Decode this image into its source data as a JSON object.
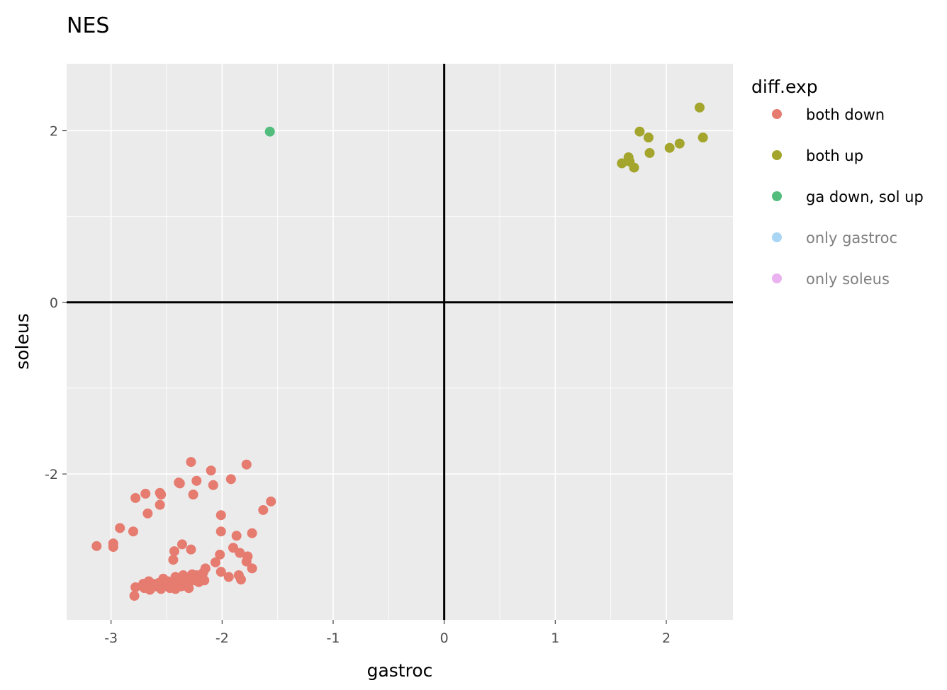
{
  "chart_data": {
    "type": "scatter",
    "title": "NES",
    "xlabel": "gastroc",
    "ylabel": "soleus",
    "xlim": [
      -3.4,
      2.6
    ],
    "ylim": [
      -3.7,
      2.78
    ],
    "xticks": [
      -3,
      -2,
      -1,
      0,
      1,
      2
    ],
    "yticks": [
      -2,
      0,
      2
    ],
    "grid": true,
    "reference_lines": {
      "x": 0,
      "y": 0
    },
    "legend": {
      "title": "diff.exp",
      "position": "right",
      "entries": [
        {
          "label": "both down",
          "color": "#e67b70",
          "text_color": "#000000"
        },
        {
          "label": "both up",
          "color": "#a3a52c",
          "text_color": "#000000"
        },
        {
          "label": "ga down, sol up",
          "color": "#52bd7d",
          "text_color": "#000000"
        },
        {
          "label": "only gastroc",
          "color": "#a9d6f5",
          "text_color": "#808080"
        },
        {
          "label": "only soleus",
          "color": "#eab3f0",
          "text_color": "#808080"
        }
      ]
    },
    "series": [
      {
        "name": "both down",
        "color": "#e67b70",
        "points": [
          [
            -3.13,
            -2.84
          ],
          [
            -2.98,
            -2.81
          ],
          [
            -2.98,
            -2.85
          ],
          [
            -2.92,
            -2.63
          ],
          [
            -2.8,
            -2.67
          ],
          [
            -2.78,
            -2.28
          ],
          [
            -2.69,
            -2.23
          ],
          [
            -2.67,
            -2.46
          ],
          [
            -2.56,
            -2.22
          ],
          [
            -2.55,
            -2.24
          ],
          [
            -2.56,
            -2.36
          ],
          [
            -2.39,
            -2.1
          ],
          [
            -2.38,
            -2.11
          ],
          [
            -2.28,
            -1.86
          ],
          [
            -2.26,
            -2.24
          ],
          [
            -2.23,
            -2.08
          ],
          [
            -2.1,
            -1.96
          ],
          [
            -2.08,
            -2.13
          ],
          [
            -1.92,
            -2.06
          ],
          [
            -1.78,
            -1.89
          ],
          [
            -2.01,
            -2.48
          ],
          [
            -2.01,
            -2.67
          ],
          [
            -1.87,
            -2.72
          ],
          [
            -1.73,
            -2.69
          ],
          [
            -1.63,
            -2.42
          ],
          [
            -1.56,
            -2.32
          ],
          [
            -2.36,
            -2.82
          ],
          [
            -2.43,
            -2.9
          ],
          [
            -2.28,
            -2.88
          ],
          [
            -2.44,
            -3.0
          ],
          [
            -1.9,
            -2.86
          ],
          [
            -1.84,
            -2.92
          ],
          [
            -1.77,
            -2.96
          ],
          [
            -1.78,
            -3.02
          ],
          [
            -1.73,
            -3.1
          ],
          [
            -2.02,
            -2.94
          ],
          [
            -2.06,
            -3.03
          ],
          [
            -2.15,
            -3.1
          ],
          [
            -2.17,
            -3.15
          ],
          [
            -2.16,
            -3.24
          ],
          [
            -2.01,
            -3.14
          ],
          [
            -1.94,
            -3.2
          ],
          [
            -1.85,
            -3.18
          ],
          [
            -1.83,
            -3.23
          ],
          [
            -2.78,
            -3.32
          ],
          [
            -2.79,
            -3.42
          ],
          [
            -2.71,
            -3.28
          ],
          [
            -2.7,
            -3.33
          ],
          [
            -2.66,
            -3.25
          ],
          [
            -2.64,
            -3.3
          ],
          [
            -2.65,
            -3.35
          ],
          [
            -2.62,
            -3.28
          ],
          [
            -2.6,
            -3.31
          ],
          [
            -2.57,
            -3.27
          ],
          [
            -2.55,
            -3.34
          ],
          [
            -2.53,
            -3.22
          ],
          [
            -2.51,
            -3.3
          ],
          [
            -2.49,
            -3.25
          ],
          [
            -2.47,
            -3.33
          ],
          [
            -2.44,
            -3.29
          ],
          [
            -2.42,
            -3.2
          ],
          [
            -2.42,
            -3.34
          ],
          [
            -2.4,
            -3.26
          ],
          [
            -2.37,
            -3.31
          ],
          [
            -2.35,
            -3.18
          ],
          [
            -2.33,
            -3.27
          ],
          [
            -2.31,
            -3.21
          ],
          [
            -2.3,
            -3.33
          ],
          [
            -2.27,
            -3.17
          ],
          [
            -2.25,
            -3.24
          ],
          [
            -2.23,
            -3.18
          ],
          [
            -2.21,
            -3.26
          ],
          [
            -2.26,
            -3.19
          ],
          [
            -2.33,
            -3.3
          ]
        ]
      },
      {
        "name": "both up",
        "color": "#a3a52c",
        "points": [
          [
            2.3,
            2.27
          ],
          [
            2.33,
            1.92
          ],
          [
            1.76,
            1.99
          ],
          [
            1.84,
            1.92
          ],
          [
            2.12,
            1.85
          ],
          [
            2.03,
            1.8
          ],
          [
            1.85,
            1.74
          ],
          [
            1.6,
            1.62
          ],
          [
            1.66,
            1.69
          ],
          [
            1.67,
            1.64
          ],
          [
            1.71,
            1.57
          ]
        ]
      },
      {
        "name": "ga down, sol up",
        "color": "#52bd7d",
        "points": [
          [
            -1.57,
            1.99
          ]
        ]
      }
    ]
  }
}
